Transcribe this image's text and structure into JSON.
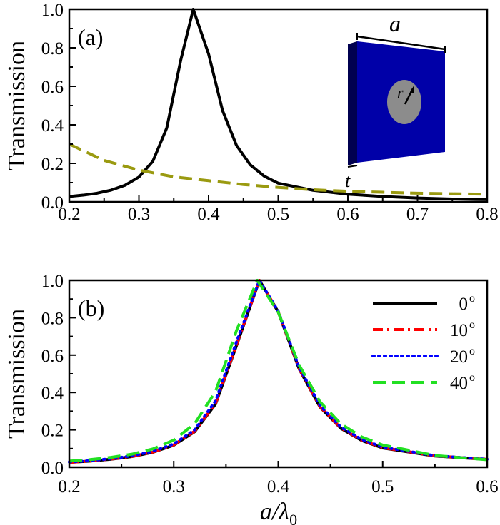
{
  "chart_data": [
    {
      "type": "line",
      "panel_label": "(a)",
      "ylabel": "Transmission",
      "xlim": [
        0.2,
        0.8
      ],
      "ylim": [
        0.0,
        1.0
      ],
      "xticks": [
        "0.2",
        "0.3",
        "0.4",
        "0.5",
        "0.6",
        "0.7",
        "0.8"
      ],
      "yticks": [
        "0.0",
        "0.2",
        "0.4",
        "0.6",
        "0.8",
        "1.0"
      ],
      "grid": false,
      "series": [
        {
          "color": "#000000",
          "style": "solid",
          "x": [
            0.2,
            0.22,
            0.24,
            0.26,
            0.28,
            0.3,
            0.32,
            0.34,
            0.36,
            0.378,
            0.4,
            0.42,
            0.44,
            0.46,
            0.48,
            0.5,
            0.55,
            0.6,
            0.65,
            0.7,
            0.75,
            0.8
          ],
          "y": [
            0.028,
            0.035,
            0.045,
            0.061,
            0.086,
            0.129,
            0.211,
            0.384,
            0.735,
            1.0,
            0.768,
            0.475,
            0.294,
            0.192,
            0.133,
            0.097,
            0.06,
            0.04,
            0.028,
            0.02,
            0.015,
            0.012
          ]
        },
        {
          "color": "#9a9a10",
          "style": "dashed",
          "x": [
            0.2,
            0.25,
            0.3,
            0.35,
            0.4,
            0.45,
            0.5,
            0.55,
            0.6,
            0.65,
            0.7,
            0.75,
            0.8
          ],
          "y": [
            0.3,
            0.215,
            0.165,
            0.13,
            0.11,
            0.09,
            0.075,
            0.063,
            0.055,
            0.05,
            0.045,
            0.042,
            0.04
          ]
        }
      ],
      "inset": {
        "labels": {
          "a": "a",
          "r": "r",
          "t": "t"
        },
        "colors": {
          "slab": "#0000a8",
          "slab_side": "#000050",
          "hole": "#8c8c8c"
        }
      }
    },
    {
      "type": "line",
      "panel_label": "(b)",
      "ylabel": "Transmission",
      "xlabel": {
        "main": "a/λ",
        "sub": "0"
      },
      "xlim": [
        0.2,
        0.6
      ],
      "ylim": [
        0.0,
        1.0
      ],
      "xticks": [
        "0.2",
        "0.3",
        "0.4",
        "0.5",
        "0.6"
      ],
      "yticks": [
        "0.0",
        "0.2",
        "0.4",
        "0.6",
        "0.8",
        "1.0"
      ],
      "grid": false,
      "legend_position": "top-right",
      "series": [
        {
          "name": "0",
          "sup": "o",
          "color": "#000000",
          "style": "solid",
          "x": [
            0.2,
            0.22,
            0.24,
            0.26,
            0.28,
            0.3,
            0.32,
            0.34,
            0.36,
            0.382,
            0.4,
            0.42,
            0.44,
            0.46,
            0.48,
            0.5,
            0.55,
            0.6
          ],
          "y": [
            0.026,
            0.033,
            0.043,
            0.057,
            0.08,
            0.118,
            0.19,
            0.338,
            0.65,
            1.0,
            0.831,
            0.526,
            0.322,
            0.208,
            0.143,
            0.103,
            0.06,
            0.042
          ]
        },
        {
          "name": "10",
          "sup": "o",
          "color": "#ff0000",
          "style": "dashdot",
          "x": [
            0.2,
            0.22,
            0.24,
            0.26,
            0.28,
            0.3,
            0.32,
            0.34,
            0.36,
            0.382,
            0.4,
            0.42,
            0.44,
            0.46,
            0.48,
            0.5,
            0.55,
            0.6
          ],
          "y": [
            0.026,
            0.033,
            0.044,
            0.058,
            0.081,
            0.12,
            0.193,
            0.342,
            0.655,
            1.0,
            0.832,
            0.528,
            0.324,
            0.21,
            0.145,
            0.105,
            0.061,
            0.043
          ]
        },
        {
          "name": "20",
          "sup": "o",
          "color": "#0000ff",
          "style": "dotted",
          "x": [
            0.2,
            0.22,
            0.24,
            0.26,
            0.28,
            0.3,
            0.32,
            0.34,
            0.36,
            0.382,
            0.4,
            0.42,
            0.44,
            0.46,
            0.48,
            0.5,
            0.55,
            0.6
          ],
          "y": [
            0.028,
            0.035,
            0.046,
            0.061,
            0.085,
            0.125,
            0.2,
            0.355,
            0.67,
            1.0,
            0.835,
            0.535,
            0.33,
            0.215,
            0.149,
            0.108,
            0.062,
            0.043
          ]
        },
        {
          "name": "40",
          "sup": "o",
          "color": "#22e022",
          "style": "dashed",
          "x": [
            0.2,
            0.22,
            0.24,
            0.26,
            0.28,
            0.3,
            0.32,
            0.34,
            0.36,
            0.38,
            0.4,
            0.42,
            0.44,
            0.46,
            0.48,
            0.5,
            0.55,
            0.6
          ],
          "y": [
            0.033,
            0.041,
            0.053,
            0.07,
            0.098,
            0.145,
            0.233,
            0.405,
            0.73,
            1.0,
            0.83,
            0.547,
            0.35,
            0.232,
            0.162,
            0.119,
            0.063,
            0.04
          ]
        }
      ]
    }
  ]
}
